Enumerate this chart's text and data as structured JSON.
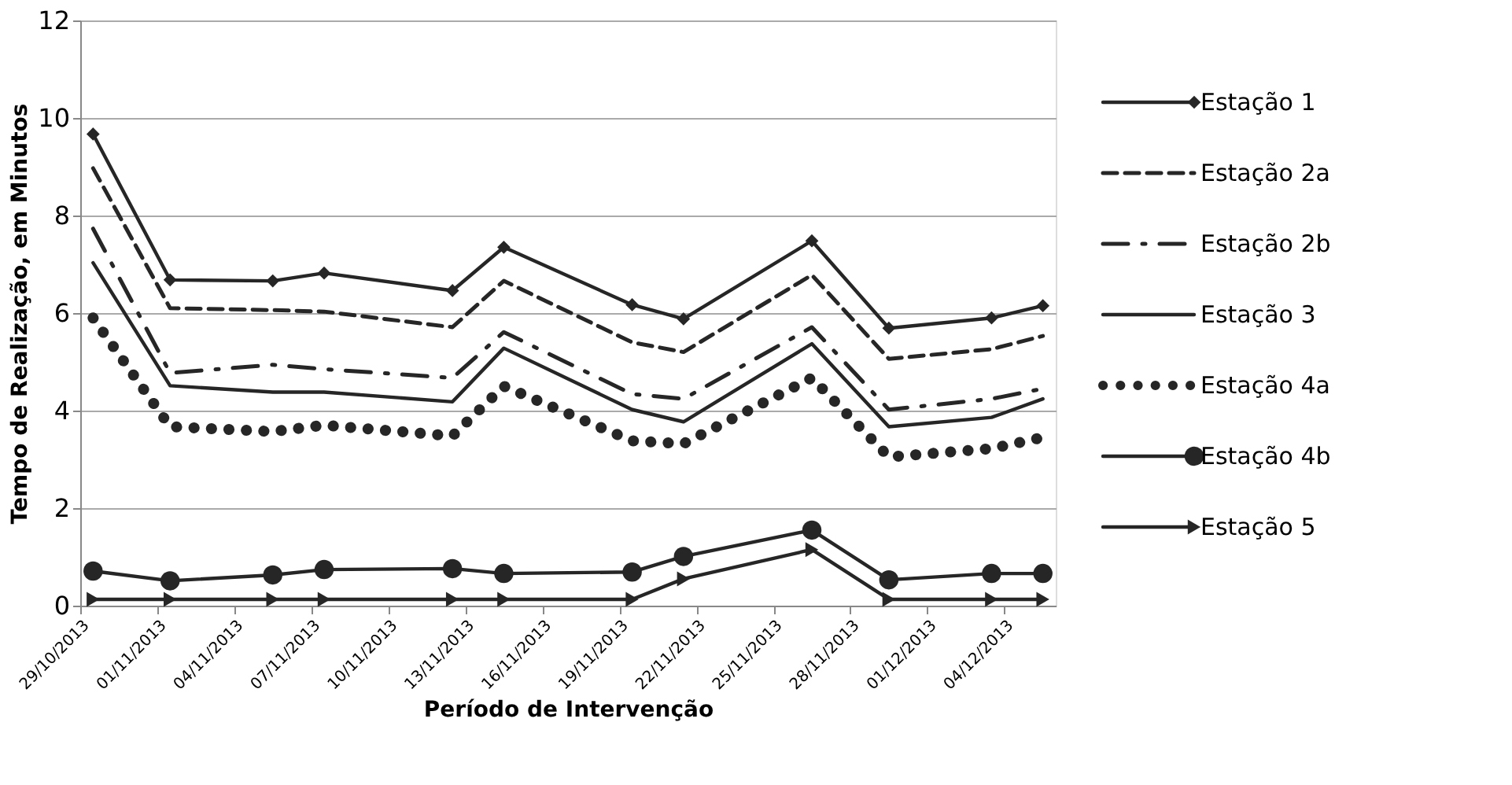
{
  "chart_data": {
    "type": "line",
    "xlabel": "Período de Intervenção",
    "ylabel": "Tempo de Realização, em Minutos",
    "x": [
      "2013-10-29T12:00",
      "2013-11-01T12:00",
      "2013-11-05T12:00",
      "2013-11-07T12:00",
      "2013-11-12T12:00",
      "2013-11-14T12:00",
      "2013-11-19T12:00",
      "2013-11-21T12:00",
      "2013-11-26T12:00",
      "2013-11-29T12:00",
      "2013-12-03T12:00",
      "2013-12-05T12:00"
    ],
    "xlim": [
      "2013-10-29",
      "2013-12-06"
    ],
    "xticks": [
      {
        "value": "2013-10-29",
        "label": "29/10/2013"
      },
      {
        "value": "2013-11-01",
        "label": "01/11/2013"
      },
      {
        "value": "2013-11-04",
        "label": "04/11/2013"
      },
      {
        "value": "2013-11-07",
        "label": "07/11/2013"
      },
      {
        "value": "2013-11-10",
        "label": "10/11/2013"
      },
      {
        "value": "2013-11-13",
        "label": "13/11/2013"
      },
      {
        "value": "2013-11-16",
        "label": "16/11/2013"
      },
      {
        "value": "2013-11-19",
        "label": "19/11/2013"
      },
      {
        "value": "2013-11-22",
        "label": "22/11/2013"
      },
      {
        "value": "2013-11-25",
        "label": "25/11/2013"
      },
      {
        "value": "2013-11-28",
        "label": "28/11/2013"
      },
      {
        "value": "2013-12-01",
        "label": "01/12/2013"
      },
      {
        "value": "2013-12-04",
        "label": "04/12/2013"
      }
    ],
    "ylim": [
      0,
      12
    ],
    "yticks": [
      0,
      2,
      4,
      6,
      8,
      10,
      12
    ],
    "grid": "y",
    "legend": "right",
    "series": [
      {
        "name": "Estação 1",
        "color": "#262626",
        "marker": "diamond",
        "line_style": "solid",
        "values": [
          9.67,
          6.68,
          6.66,
          6.82,
          6.46,
          7.35,
          6.17,
          5.88,
          7.48,
          5.69,
          5.9,
          6.15
        ]
      },
      {
        "name": "Estação 2a",
        "color": "#262626",
        "marker": "none",
        "line_style": "dashed",
        "values": [
          8.97,
          6.1,
          6.06,
          6.03,
          5.71,
          6.66,
          5.4,
          5.2,
          6.78,
          5.06,
          5.26,
          5.53
        ]
      },
      {
        "name": "Estação 2b",
        "color": "#262626",
        "marker": "none",
        "line_style": "dashdot",
        "values": [
          7.73,
          4.77,
          4.94,
          4.85,
          4.67,
          5.61,
          4.34,
          4.24,
          5.71,
          4.02,
          4.24,
          4.45
        ]
      },
      {
        "name": "Estação 3",
        "color": "#262626",
        "marker": "none",
        "line_style": "solid",
        "values": [
          7.03,
          4.51,
          4.38,
          4.38,
          4.18,
          5.28,
          4.02,
          3.77,
          5.37,
          3.67,
          3.86,
          4.24
        ]
      },
      {
        "name": "Estação 4a",
        "color": "#262626",
        "marker": "none",
        "line_style": "dotted",
        "values": [
          5.9,
          3.67,
          3.57,
          3.7,
          3.48,
          4.5,
          3.38,
          3.32,
          4.67,
          3.05,
          3.22,
          3.45
        ]
      },
      {
        "name": "Estação 4b",
        "color": "#262626",
        "marker": "circle",
        "line_style": "solid",
        "values": [
          0.71,
          0.51,
          0.63,
          0.74,
          0.76,
          0.66,
          0.69,
          1.01,
          1.55,
          0.53,
          0.66,
          0.66
        ]
      },
      {
        "name": "Estação 5",
        "color": "#262626",
        "marker": "triangle",
        "line_style": "solid",
        "values": [
          0.13,
          0.13,
          0.13,
          0.13,
          0.13,
          0.13,
          0.13,
          0.55,
          1.15,
          0.13,
          0.13,
          0.13
        ]
      }
    ]
  }
}
